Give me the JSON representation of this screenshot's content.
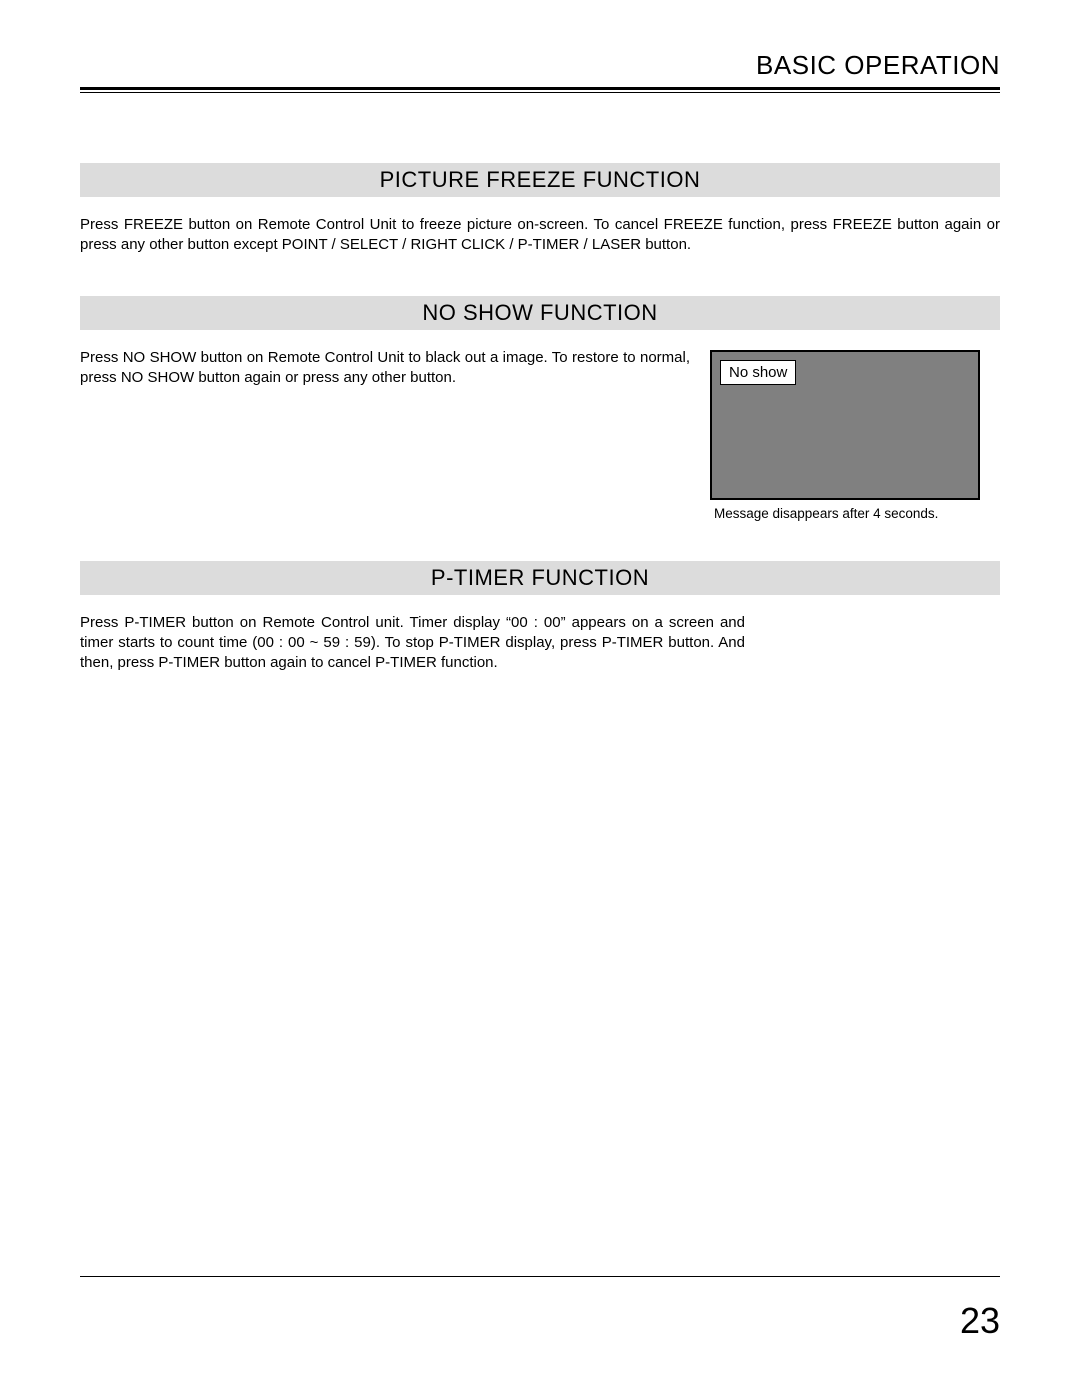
{
  "header": {
    "title": "BASIC OPERATION"
  },
  "sections": {
    "freeze": {
      "heading": "PICTURE FREEZE FUNCTION",
      "body": "Press FREEZE button on Remote Control Unit to freeze picture on-screen.  To cancel FREEZE function, press FREEZE button again or press any other button except POINT / SELECT / RIGHT CLICK / P-TIMER / LASER button."
    },
    "noshow": {
      "heading": "NO SHOW FUNCTION",
      "body": "Press NO SHOW button on Remote Control Unit to black out a image. To restore to normal, press NO SHOW button again or press any other button.",
      "box_label": "No show",
      "caption": "Message disappears after 4 seconds."
    },
    "ptimer": {
      "heading": "P-TIMER FUNCTION",
      "body": "Press P-TIMER button on Remote Control unit.  Timer display “00 : 00” appears on a screen and timer starts to count time (00 : 00 ~ 59 : 59).\nTo stop P-TIMER display, press P-TIMER button.  And then, press P-TIMER button again to cancel P-TIMER function."
    }
  },
  "page_number": "23",
  "colors": {
    "heading_bg": "#dcdcdc",
    "noshow_bg": "#808080",
    "text": "#000000",
    "page_bg": "#ffffff"
  }
}
